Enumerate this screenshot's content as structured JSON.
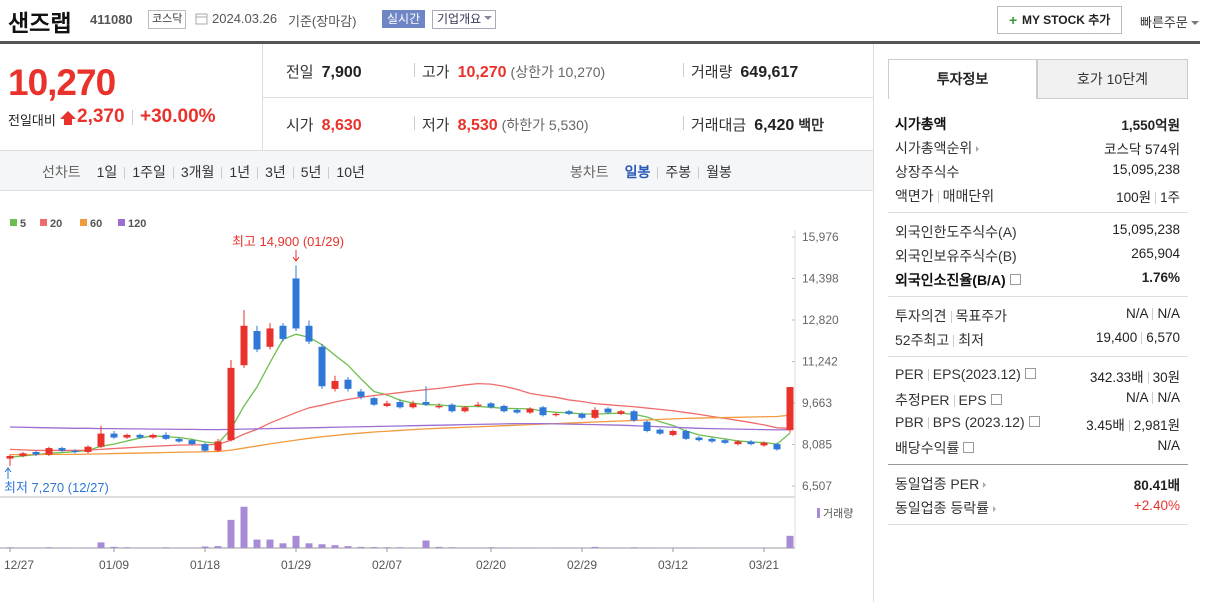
{
  "header": {
    "name": "샌즈랩",
    "code": "411080",
    "market": "코스닥",
    "date": "2024.03.26",
    "basis": "기준(장마감)",
    "realtime": "실시간",
    "overview": "기업개요",
    "mystock": "MY STOCK 추가",
    "quick_order": "빠른주문"
  },
  "price": {
    "current": "10,270",
    "change_label": "전일대비",
    "change": "2,370",
    "change_pct": "+30.00%"
  },
  "summary": [
    [
      {
        "label": "전일",
        "value": "7,900"
      },
      {
        "label": "고가",
        "value": "10,270",
        "note": "(상한가 10,270)"
      },
      {
        "label": "거래량",
        "value": "649,617"
      }
    ],
    [
      {
        "label": "시가",
        "value": "8,630"
      },
      {
        "label": "저가",
        "value": "8,530",
        "note": "(하한가 5,530)"
      },
      {
        "label": "거래대금",
        "value": "6,420",
        "unit": "백만"
      }
    ]
  ],
  "chart_tabs": {
    "line_label": "선차트",
    "line_items": [
      "1일",
      "1주일",
      "3개월",
      "1년",
      "3년",
      "5년",
      "10년"
    ],
    "candle_label": "봉차트",
    "candle_items": [
      "일봉",
      "주봉",
      "월봉"
    ]
  },
  "chart_data": {
    "type": "candlestick",
    "volume_label": "거래량",
    "annotations": [
      "최고 14,900 (01/29)",
      "최저 7,270 (12/27)"
    ],
    "x": [
      "12/27",
      null,
      null,
      null,
      null,
      null,
      null,
      null,
      "01/09",
      null,
      null,
      null,
      null,
      null,
      null,
      "01/18",
      null,
      null,
      null,
      null,
      null,
      null,
      "01/29",
      null,
      null,
      null,
      null,
      null,
      null,
      "02/07",
      null,
      null,
      null,
      null,
      null,
      null,
      null,
      "02/20",
      null,
      null,
      null,
      null,
      null,
      null,
      "02/29",
      null,
      null,
      null,
      null,
      null,
      null,
      "03/12",
      null,
      null,
      null,
      null,
      null,
      null,
      "03/21",
      null,
      null
    ],
    "open": [
      7550,
      7650,
      7800,
      7700,
      7950,
      7850,
      7800,
      8000,
      8500,
      8350,
      8450,
      8350,
      8450,
      8300,
      8250,
      8100,
      7850,
      8250,
      11100,
      12400,
      11800,
      12600,
      14400,
      12600,
      11800,
      10200,
      10550,
      10100,
      9850,
      9550,
      9700,
      9500,
      9700,
      9500,
      9600,
      9350,
      9550,
      9650,
      9550,
      9400,
      9300,
      9500,
      9200,
      9350,
      9250,
      9100,
      9450,
      9250,
      9350,
      8950,
      8650,
      8450,
      8600,
      8350,
      8300,
      8250,
      8100,
      8200,
      8050,
      8100,
      8630
    ],
    "high": [
      7700,
      7800,
      7850,
      8000,
      8000,
      7900,
      8050,
      8800,
      8600,
      8500,
      8500,
      8500,
      8550,
      8350,
      8300,
      8150,
      8300,
      11300,
      13200,
      12600,
      12700,
      12700,
      14900,
      12800,
      11900,
      10700,
      10650,
      10200,
      9900,
      9750,
      9800,
      9750,
      10300,
      9650,
      9650,
      9550,
      9700,
      9700,
      9600,
      9450,
      9500,
      9550,
      9300,
      9400,
      9300,
      9500,
      9500,
      9400,
      9400,
      9000,
      8700,
      8650,
      8650,
      8400,
      8350,
      8300,
      8250,
      8250,
      8200,
      8150,
      10270
    ],
    "low": [
      7270,
      7600,
      7650,
      7650,
      7800,
      7750,
      7750,
      7950,
      8300,
      8300,
      8300,
      8300,
      8250,
      8150,
      8050,
      7800,
      7800,
      8200,
      11000,
      11600,
      11700,
      12000,
      12400,
      11900,
      10200,
      10100,
      10100,
      9800,
      9550,
      9500,
      9450,
      9450,
      9550,
      9450,
      9300,
      9300,
      9500,
      9450,
      9300,
      9250,
      9250,
      9150,
      9150,
      9200,
      9050,
      9050,
      9250,
      9200,
      8950,
      8550,
      8450,
      8400,
      8250,
      8200,
      8150,
      8100,
      8050,
      8050,
      8000,
      7850,
      8530
    ],
    "close": [
      7650,
      7750,
      7700,
      7950,
      7850,
      7800,
      8000,
      8500,
      8350,
      8450,
      8350,
      8450,
      8300,
      8200,
      8100,
      7850,
      8200,
      11000,
      12600,
      11700,
      12500,
      12100,
      12500,
      12000,
      10300,
      10500,
      10200,
      9900,
      9600,
      9650,
      9500,
      9650,
      9600,
      9550,
      9350,
      9500,
      9600,
      9500,
      9350,
      9300,
      9450,
      9200,
      9250,
      9250,
      9100,
      9400,
      9300,
      9350,
      9000,
      8600,
      8500,
      8600,
      8300,
      8250,
      8200,
      8150,
      8200,
      8100,
      8150,
      7900,
      10270
    ],
    "volume": [
      40000,
      30000,
      30000,
      40000,
      30000,
      20000,
      30000,
      300000,
      60000,
      40000,
      30000,
      30000,
      40000,
      30000,
      30000,
      80000,
      100000,
      1500000,
      2200000,
      450000,
      450000,
      250000,
      650000,
      250000,
      200000,
      150000,
      100000,
      60000,
      50000,
      40000,
      40000,
      30000,
      400000,
      60000,
      40000,
      30000,
      30000,
      40000,
      30000,
      20000,
      30000,
      20000,
      30000,
      30000,
      20000,
      60000,
      30000,
      30000,
      40000,
      30000,
      20000,
      20000,
      30000,
      20000,
      20000,
      20000,
      20000,
      20000,
      20000,
      20000,
      649617
    ],
    "up_color": "#e8322b",
    "down_color": "#2f78d8",
    "volume_color": "#a88bd6",
    "series": [
      {
        "name": "5",
        "color": "#6cbf4f",
        "values": [
          7600,
          7650,
          7700,
          7750,
          7780,
          7810,
          7860,
          8020,
          8100,
          8220,
          8330,
          8420,
          8380,
          8350,
          8280,
          8180,
          8130,
          8670,
          9550,
          10270,
          11200,
          12080,
          12280,
          12160,
          11880,
          11480,
          11100,
          10580,
          10100,
          9970,
          9770,
          9660,
          9600,
          9590,
          9550,
          9530,
          9530,
          9500,
          9460,
          9450,
          9440,
          9360,
          9310,
          9290,
          9250,
          9240,
          9260,
          9280,
          9230,
          9130,
          8950,
          8810,
          8600,
          8450,
          8370,
          8300,
          8220,
          8180,
          8160,
          8100,
          8520
        ]
      },
      {
        "name": "20",
        "color": "#f06b6b",
        "values": [
          7900,
          7880,
          7860,
          7860,
          7860,
          7860,
          7870,
          7900,
          7930,
          7960,
          7990,
          8020,
          8040,
          8060,
          8070,
          8070,
          8090,
          8250,
          8480,
          8660,
          8900,
          9100,
          9300,
          9480,
          9580,
          9700,
          9800,
          9880,
          9950,
          10000,
          10060,
          10120,
          10170,
          10220,
          10280,
          10350,
          10400,
          10380,
          10300,
          10180,
          10030,
          9950,
          9880,
          9780,
          9720,
          9640,
          9600,
          9560,
          9520,
          9470,
          9420,
          9370,
          9300,
          9230,
          9150,
          9080,
          9000,
          8920,
          8830,
          8720,
          8700
        ]
      },
      {
        "name": "60",
        "color": "#f39a3d",
        "values": [
          7700,
          7700,
          7700,
          7710,
          7710,
          7710,
          7720,
          7730,
          7740,
          7750,
          7760,
          7770,
          7780,
          7790,
          7800,
          7810,
          7820,
          7870,
          7950,
          8030,
          8110,
          8180,
          8250,
          8320,
          8380,
          8430,
          8480,
          8520,
          8560,
          8590,
          8620,
          8650,
          8680,
          8700,
          8720,
          8740,
          8760,
          8780,
          8800,
          8820,
          8840,
          8860,
          8880,
          8900,
          8920,
          8940,
          8960,
          8980,
          9000,
          9020,
          9040,
          9060,
          9080,
          9090,
          9100,
          9110,
          9120,
          9130,
          9140,
          9150,
          9200
        ]
      },
      {
        "name": "120",
        "color": "#9b6fd1",
        "values": [
          8750,
          8740,
          8730,
          8720,
          8710,
          8700,
          8700,
          8690,
          8690,
          8680,
          8680,
          8670,
          8670,
          8660,
          8660,
          8650,
          8650,
          8660,
          8670,
          8680,
          8690,
          8700,
          8710,
          8720,
          8730,
          8740,
          8750,
          8760,
          8770,
          8780,
          8790,
          8800,
          8810,
          8820,
          8830,
          8840,
          8850,
          8860,
          8870,
          8880,
          8880,
          8880,
          8870,
          8860,
          8850,
          8840,
          8830,
          8820,
          8800,
          8780,
          8760,
          8740,
          8720,
          8700,
          8690,
          8680,
          8670,
          8660,
          8650,
          8640,
          8650
        ]
      }
    ],
    "ylim": [
      6507,
      15976
    ],
    "yticks": [
      {
        "value": 15976,
        "label": "15,976"
      },
      {
        "value": 14398,
        "label": "14,398"
      },
      {
        "value": 12820,
        "label": "12,820"
      },
      {
        "value": 11242,
        "label": "11,242"
      },
      {
        "value": 9663,
        "label": "9,663"
      },
      {
        "value": 8085,
        "label": "8,085"
      },
      {
        "value": 6507,
        "label": "6,507"
      }
    ],
    "y2lim": [
      0,
      2400000
    ],
    "grid": false
  },
  "info": {
    "tabs": [
      "투자정보",
      "호가 10단계"
    ],
    "sections": [
      [
        {
          "label": [
            "시가총액"
          ],
          "value": [
            "1,550억원"
          ]
        },
        {
          "label": [
            "시가총액순위"
          ],
          "value": [
            "코스닥 574위"
          ]
        },
        {
          "label": [
            "상장주식수"
          ],
          "value": [
            "15,095,238"
          ]
        },
        {
          "label": [
            "액면가",
            "매매단위"
          ],
          "value": [
            "100원",
            "1주"
          ]
        }
      ],
      [
        {
          "label": [
            "외국인한도주식수(A)"
          ],
          "value": [
            "15,095,238"
          ]
        },
        {
          "label": [
            "외국인보유주식수(B)"
          ],
          "value": [
            "265,904"
          ]
        },
        {
          "label": [
            "외국인소진율(B/A)"
          ],
          "value": [
            "1.76%"
          ]
        }
      ],
      [
        {
          "label": [
            "투자의견",
            "목표주가"
          ],
          "value": [
            "N/A",
            "N/A"
          ]
        },
        {
          "label": [
            "52주최고",
            "최저"
          ],
          "value": [
            "19,400",
            "6,570"
          ]
        }
      ],
      [
        {
          "label": [
            "PER",
            "EPS(2023.12)"
          ],
          "value": [
            "342.33배",
            "30원"
          ]
        },
        {
          "label": [
            "추정PER",
            "EPS"
          ],
          "value": [
            "N/A",
            "N/A"
          ]
        },
        {
          "label": [
            "PBR",
            "BPS (2023.12)"
          ],
          "value": [
            "3.45배",
            "2,981원"
          ]
        },
        {
          "label": [
            "배당수익률"
          ],
          "value": [
            "N/A"
          ]
        }
      ],
      [
        {
          "label": [
            "동일업종 PER"
          ],
          "value": [
            "80.41배"
          ]
        },
        {
          "label": [
            "동일업종 등락률"
          ],
          "value": [
            "+2.40%"
          ]
        }
      ]
    ]
  }
}
